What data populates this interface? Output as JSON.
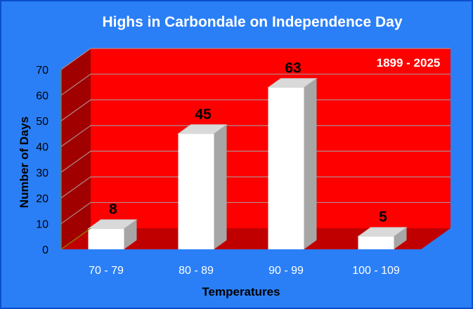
{
  "chart_data": {
    "type": "bar",
    "title": "Highs in Carbondale on Independence Day",
    "annotation": "1899 - 2025",
    "xlabel": "Temperatures",
    "ylabel": "Number of Days",
    "categories": [
      "70 - 79",
      "80 - 89",
      "90 - 99",
      "100 - 109"
    ],
    "values": [
      8,
      45,
      63,
      5
    ],
    "ylim": [
      0,
      70
    ],
    "yticks": [
      0,
      10,
      20,
      30,
      40,
      50,
      60,
      70
    ],
    "grid": true,
    "colors": {
      "background": "#2a7ff7",
      "back_wall": "#ff0000",
      "side_wall": "#a00000",
      "floor": "#c00000",
      "bar_front": "#ffffff",
      "bar_top": "#d9d9d9",
      "bar_side": "#a6a6a6",
      "gridline": "#b08a8a"
    }
  }
}
